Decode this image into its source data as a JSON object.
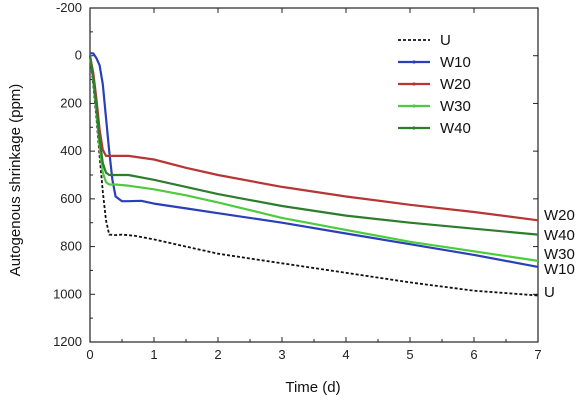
{
  "chart_data": {
    "type": "line",
    "xlabel": "Time (d)",
    "ylabel": "Autogenous shrinkage (ppm)",
    "xlim": [
      0,
      7
    ],
    "ylim": [
      -200,
      1200
    ],
    "y_inverted": true,
    "x_ticks": [
      "0",
      "1",
      "2",
      "3",
      "4",
      "5",
      "6",
      "7"
    ],
    "y_ticks": [
      "-200",
      "0",
      "200",
      "400",
      "600",
      "800",
      "1000",
      "1200"
    ],
    "grid": false,
    "legend_position": "top-right",
    "series": [
      {
        "name": "U",
        "color": "#111111",
        "dash": "3,2",
        "end_label": "U",
        "points": [
          [
            0,
            0
          ],
          [
            0.05,
            120
          ],
          [
            0.1,
            260
          ],
          [
            0.15,
            420
          ],
          [
            0.2,
            570
          ],
          [
            0.25,
            690
          ],
          [
            0.3,
            750
          ],
          [
            0.4,
            752
          ],
          [
            0.5,
            750
          ],
          [
            0.7,
            755
          ],
          [
            1,
            770
          ],
          [
            1.5,
            800
          ],
          [
            2,
            830
          ],
          [
            3,
            870
          ],
          [
            4,
            910
          ],
          [
            5,
            950
          ],
          [
            6,
            985
          ],
          [
            7,
            1005
          ]
        ]
      },
      {
        "name": "W10",
        "color": "#2a3fb8",
        "dash": "",
        "end_label": "W10",
        "points": [
          [
            0,
            -10
          ],
          [
            0.05,
            -10
          ],
          [
            0.1,
            10
          ],
          [
            0.15,
            40
          ],
          [
            0.2,
            120
          ],
          [
            0.25,
            260
          ],
          [
            0.3,
            400
          ],
          [
            0.35,
            520
          ],
          [
            0.4,
            590
          ],
          [
            0.5,
            610
          ],
          [
            0.6,
            610
          ],
          [
            0.8,
            608
          ],
          [
            1,
            620
          ],
          [
            1.5,
            640
          ],
          [
            2,
            660
          ],
          [
            3,
            700
          ],
          [
            4,
            745
          ],
          [
            5,
            790
          ],
          [
            6,
            835
          ],
          [
            7,
            885
          ]
        ]
      },
      {
        "name": "W20",
        "color": "#b83535",
        "dash": "",
        "end_label": "W20",
        "points": [
          [
            0,
            0
          ],
          [
            0.05,
            70
          ],
          [
            0.1,
            180
          ],
          [
            0.15,
            310
          ],
          [
            0.2,
            395
          ],
          [
            0.25,
            420
          ],
          [
            0.4,
            420
          ],
          [
            0.6,
            420
          ],
          [
            1,
            435
          ],
          [
            1.5,
            470
          ],
          [
            2,
            500
          ],
          [
            3,
            550
          ],
          [
            4,
            590
          ],
          [
            5,
            625
          ],
          [
            6,
            655
          ],
          [
            7,
            690
          ]
        ]
      },
      {
        "name": "W30",
        "color": "#4ccc3c",
        "dash": "",
        "end_label": "W30",
        "points": [
          [
            0,
            0
          ],
          [
            0.05,
            100
          ],
          [
            0.1,
            230
          ],
          [
            0.15,
            380
          ],
          [
            0.2,
            490
          ],
          [
            0.25,
            530
          ],
          [
            0.3,
            540
          ],
          [
            0.4,
            540
          ],
          [
            0.6,
            545
          ],
          [
            1,
            560
          ],
          [
            1.5,
            585
          ],
          [
            2,
            615
          ],
          [
            3,
            680
          ],
          [
            4,
            730
          ],
          [
            5,
            780
          ],
          [
            6,
            820
          ],
          [
            7,
            860
          ]
        ]
      },
      {
        "name": "W40",
        "color": "#2e7d2e",
        "dash": "",
        "end_label": "W40",
        "points": [
          [
            0,
            0
          ],
          [
            0.05,
            90
          ],
          [
            0.1,
            210
          ],
          [
            0.15,
            350
          ],
          [
            0.2,
            450
          ],
          [
            0.25,
            490
          ],
          [
            0.3,
            500
          ],
          [
            0.4,
            500
          ],
          [
            0.6,
            500
          ],
          [
            1,
            520
          ],
          [
            1.5,
            550
          ],
          [
            2,
            580
          ],
          [
            3,
            630
          ],
          [
            4,
            670
          ],
          [
            5,
            700
          ],
          [
            6,
            725
          ],
          [
            7,
            750
          ]
        ]
      }
    ]
  }
}
